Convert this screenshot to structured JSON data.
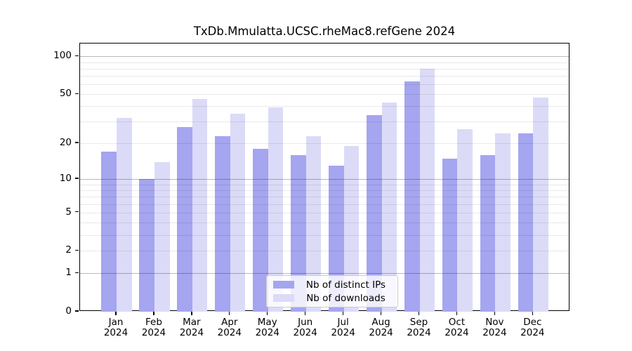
{
  "title": "TxDb.Mmulatta.UCSC.rheMac8.refGene 2024",
  "chart_data": {
    "type": "bar",
    "title": "TxDb.Mmulatta.UCSC.rheMac8.refGene 2024",
    "categories": [
      "Jan",
      "Feb",
      "Mar",
      "Apr",
      "May",
      "Jun",
      "Jul",
      "Aug",
      "Sep",
      "Oct",
      "Nov",
      "Dec"
    ],
    "year_label": "2024",
    "series": [
      {
        "name": "Nb of distinct IPs",
        "color": "#a5a5f0",
        "values": [
          17,
          10,
          27,
          23,
          18,
          16,
          13,
          34,
          63,
          15,
          16,
          24
        ]
      },
      {
        "name": "Nb of downloads",
        "color": "#dbdbf8",
        "values": [
          32,
          14,
          46,
          35,
          39,
          23,
          19,
          43,
          80,
          26,
          24,
          47
        ]
      }
    ],
    "xlabel": "",
    "ylabel": "",
    "yscale": "log1p",
    "ylim": [
      0,
      128
    ],
    "yticks": [
      0,
      1,
      2,
      5,
      10,
      20,
      50,
      100
    ],
    "major_gridlines": [
      1,
      10,
      100
    ],
    "minor_gridlines": [
      2,
      3,
      4,
      5,
      6,
      7,
      8,
      9,
      20,
      30,
      40,
      50,
      60,
      70,
      80,
      90
    ],
    "grid": true,
    "legend_position": "inside-bottom-center",
    "colors": {
      "distinct_ips": "#a5a5f0",
      "downloads": "#dbdbf8",
      "axis": "#000000"
    }
  }
}
